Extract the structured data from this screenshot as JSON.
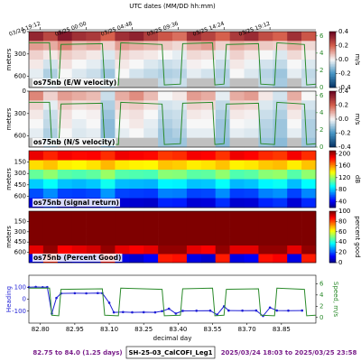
{
  "top_axis": {
    "title": "UTC dates (MM/DD hh:mm)",
    "ticks": [
      {
        "value": 82.8,
        "label": "03/24 19:12"
      },
      {
        "value": 83.0,
        "label": "03/25 00:00"
      },
      {
        "value": 83.2,
        "label": "03/25 04:48"
      },
      {
        "value": 83.4,
        "label": "03/25 09:36"
      },
      {
        "value": 83.6,
        "label": "03/25 14:24"
      },
      {
        "value": 83.8,
        "label": "03/25 19:12"
      }
    ]
  },
  "footer": {
    "left": "82.75 to 84.0 (1.25 days)",
    "center": "SH-25-03_CalCOFI_Leg1",
    "right": "2025/03/24 18:03 to 2025/03/25 23:58"
  },
  "chart_data": [
    {
      "type": "heatmap",
      "label": "os75nb (E/W velocity)",
      "ylabel": "meters",
      "colormap": "RdBu_r",
      "clabel": "m/s",
      "xlim": [
        82.75,
        84.0
      ],
      "ylim": [
        750,
        0
      ],
      "yticks": [
        0,
        300,
        600
      ],
      "y2lim": [
        0,
        6.5
      ],
      "y2ticks": [
        0,
        2,
        4,
        6
      ],
      "clim": [
        -0.4,
        0.4
      ],
      "cticks": [
        -0.4,
        -0.2,
        {
          "value": 0,
          "label": "0.0"
        },
        0.2,
        0.4
      ],
      "xbins": [
        82.75,
        82.8125,
        82.875,
        82.9375,
        83,
        83.0625,
        83.125,
        83.1875,
        83.25,
        83.3125,
        83.375,
        83.4375,
        83.5,
        83.5625,
        83.625,
        83.6875,
        83.75,
        83.8125,
        83.875,
        83.9375,
        84
      ],
      "ybins": [
        0,
        125,
        250,
        375,
        500,
        625,
        750
      ],
      "z": [
        [
          0.32,
          0.25,
          0.35,
          0.3,
          0.28,
          0.2,
          0.3,
          0.33,
          0.27,
          0.22,
          0.18,
          0.3,
          0.26,
          0.2,
          0.28,
          0.31,
          0.24,
          0.2,
          0.3,
          0.22
        ],
        [
          0.12,
          0.1,
          0.15,
          0.08,
          0.1,
          0.05,
          0.12,
          0.1,
          0.08,
          0.06,
          0.04,
          0.1,
          0.12,
          0.05,
          0.1,
          0.08,
          0.06,
          0.05,
          0.1,
          0.04
        ],
        [
          0.05,
          0.02,
          0.06,
          0.04,
          0.02,
          -0.03,
          0.05,
          0.03,
          0.02,
          0,
          -0.02,
          0.04,
          0.03,
          -0.02,
          0.05,
          0.02,
          0,
          -0.03,
          0.04,
          0.01
        ],
        [
          0.02,
          -0.04,
          0.03,
          0,
          -0.02,
          -0.06,
          0.02,
          0,
          -0.03,
          -0.05,
          -0.04,
          0.01,
          0,
          -0.05,
          0.02,
          -0.01,
          -0.04,
          -0.06,
          0,
          -0.03
        ],
        [
          -0.02,
          -0.08,
          0,
          -0.03,
          -0.05,
          -0.1,
          0,
          -0.04,
          -0.06,
          -0.08,
          -0.07,
          -0.02,
          -0.04,
          -0.08,
          0,
          -0.03,
          -0.07,
          -0.1,
          -0.02,
          -0.06
        ],
        [
          null,
          -0.05,
          null,
          null,
          null,
          -0.08,
          null,
          null,
          null,
          -0.06,
          -0.05,
          null,
          null,
          -0.07,
          null,
          null,
          -0.06,
          -0.09,
          null,
          -0.05
        ]
      ]
    },
    {
      "type": "heatmap",
      "label": "os75nb (N/S velocity)",
      "ylabel": "meters",
      "colormap": "RdBu_r",
      "clabel": "m/s",
      "xlim": [
        82.75,
        84.0
      ],
      "ylim": [
        750,
        0
      ],
      "yticks": [
        0,
        300,
        600
      ],
      "y2lim": [
        0,
        6.5
      ],
      "y2ticks": [
        0,
        2,
        4,
        6
      ],
      "clim": [
        -0.4,
        0.4
      ],
      "cticks": [
        -0.4,
        -0.2,
        {
          "value": 0,
          "label": "0.0"
        },
        0.2,
        0.4
      ],
      "xbins": [
        82.75,
        82.8125,
        82.875,
        82.9375,
        83,
        83.0625,
        83.125,
        83.1875,
        83.25,
        83.3125,
        83.375,
        83.4375,
        83.5,
        83.5625,
        83.625,
        83.6875,
        83.75,
        83.8125,
        83.875,
        83.9375,
        84
      ],
      "ybins": [
        0,
        125,
        250,
        375,
        500,
        625,
        750
      ],
      "z": [
        [
          0.15,
          0.05,
          0.12,
          0.1,
          0.08,
          -0.05,
          0.1,
          0.14,
          0.08,
          0,
          0.02,
          0.12,
          0.1,
          -0.02,
          0.1,
          0.12,
          0.02,
          -0.04,
          0.1,
          0
        ],
        [
          0.05,
          -0.02,
          0.06,
          0.03,
          0.04,
          -0.08,
          0.05,
          0.06,
          0.03,
          -0.04,
          -0.03,
          0.05,
          0.04,
          -0.06,
          0.05,
          0.04,
          -0.03,
          -0.06,
          0.05,
          -0.04
        ],
        [
          0.02,
          -0.05,
          0.03,
          0,
          0.01,
          -0.1,
          0.02,
          0.03,
          0,
          -0.06,
          -0.05,
          0.02,
          0.01,
          -0.08,
          0.02,
          0.01,
          -0.05,
          -0.08,
          0.02,
          -0.06
        ],
        [
          0,
          -0.06,
          0.02,
          -0.02,
          0,
          -0.12,
          0,
          0.02,
          -0.02,
          -0.08,
          -0.06,
          0,
          0,
          -0.1,
          0,
          -0.01,
          -0.07,
          -0.1,
          0,
          -0.08
        ],
        [
          -0.02,
          -0.08,
          0,
          -0.03,
          -0.02,
          -0.12,
          -0.02,
          0,
          -0.03,
          -0.1,
          -0.08,
          -0.02,
          -0.02,
          -0.1,
          -0.02,
          -0.03,
          -0.08,
          -0.1,
          -0.02,
          -0.08
        ],
        [
          null,
          -0.1,
          null,
          null,
          null,
          -0.14,
          null,
          null,
          null,
          -0.1,
          -0.1,
          null,
          null,
          -0.12,
          null,
          null,
          -0.1,
          -0.12,
          null,
          -0.1
        ]
      ]
    },
    {
      "type": "heatmap",
      "label": "os75nb (signal return)",
      "ylabel": "meters",
      "colormap": "jet",
      "clabel": "dB",
      "xlim": [
        82.75,
        84.0
      ],
      "ylim": [
        750,
        0
      ],
      "yticks": [
        150,
        300,
        450,
        600
      ],
      "clim": [
        20,
        210
      ],
      "cticks": [
        40,
        80,
        120,
        160,
        200
      ],
      "xbins": [
        82.75,
        82.8125,
        82.875,
        82.9375,
        83,
        83.0625,
        83.125,
        83.1875,
        83.25,
        83.3125,
        83.375,
        83.4375,
        83.5,
        83.5625,
        83.625,
        83.6875,
        83.75,
        83.8125,
        83.875,
        83.9375,
        84
      ],
      "ybins": [
        0,
        125,
        250,
        375,
        500,
        625,
        750
      ],
      "z": [
        [
          190,
          180,
          188,
          185,
          186,
          178,
          189,
          187,
          185,
          176,
          178,
          188,
          186,
          177,
          189,
          186,
          179,
          176,
          188,
          178
        ],
        [
          145,
          150,
          142,
          140,
          144,
          152,
          143,
          141,
          140,
          150,
          148,
          142,
          144,
          150,
          141,
          143,
          149,
          151,
          142,
          150
        ],
        [
          110,
          118,
          108,
          106,
          109,
          120,
          107,
          106,
          105,
          117,
          116,
          108,
          109,
          118,
          106,
          108,
          117,
          119,
          107,
          118
        ],
        [
          82,
          92,
          80,
          78,
          81,
          94,
          79,
          78,
          77,
          90,
          89,
          80,
          81,
          92,
          78,
          80,
          90,
          93,
          79,
          91
        ],
        [
          58,
          70,
          56,
          55,
          57,
          72,
          56,
          55,
          54,
          68,
          67,
          56,
          57,
          70,
          55,
          56,
          68,
          71,
          56,
          69
        ],
        [
          38,
          52,
          36,
          35,
          37,
          54,
          36,
          35,
          34,
          50,
          49,
          36,
          37,
          52,
          35,
          36,
          50,
          53,
          36,
          51
        ]
      ]
    },
    {
      "type": "heatmap",
      "label": "os75nb (Percent Good)",
      "ylabel": "meters",
      "colormap": "jet",
      "clabel": "percent good",
      "xlim": [
        82.75,
        84.0
      ],
      "ylim": [
        750,
        0
      ],
      "yticks": [
        150,
        300,
        450,
        600
      ],
      "clim": [
        0,
        100
      ],
      "cticks": [
        0,
        20,
        40,
        60,
        80,
        100
      ],
      "xbins": [
        82.75,
        82.8125,
        82.875,
        82.9375,
        83,
        83.0625,
        83.125,
        83.1875,
        83.25,
        83.3125,
        83.375,
        83.4375,
        83.5,
        83.5625,
        83.625,
        83.6875,
        83.75,
        83.8125,
        83.875,
        83.9375,
        84
      ],
      "ybins": [
        0,
        125,
        250,
        375,
        500,
        625,
        750
      ],
      "z": [
        [
          100,
          100,
          100,
          100,
          100,
          100,
          100,
          100,
          100,
          100,
          100,
          100,
          100,
          100,
          100,
          100,
          100,
          100,
          100,
          100
        ],
        [
          100,
          100,
          100,
          100,
          100,
          100,
          100,
          100,
          100,
          100,
          100,
          100,
          100,
          100,
          100,
          100,
          100,
          100,
          100,
          100
        ],
        [
          100,
          100,
          100,
          100,
          100,
          100,
          100,
          100,
          100,
          100,
          100,
          100,
          100,
          100,
          100,
          100,
          100,
          100,
          100,
          100
        ],
        [
          100,
          100,
          100,
          100,
          100,
          100,
          100,
          100,
          100,
          100,
          100,
          100,
          100,
          100,
          100,
          100,
          100,
          100,
          100,
          100
        ],
        [
          90,
          98,
          88,
          90,
          92,
          98,
          90,
          88,
          90,
          98,
          98,
          90,
          88,
          98,
          90,
          90,
          98,
          98,
          90,
          98
        ],
        [
          10,
          85,
          8,
          12,
          10,
          88,
          10,
          8,
          12,
          85,
          86,
          10,
          8,
          85,
          10,
          12,
          86,
          88,
          10,
          85
        ]
      ]
    },
    {
      "type": "line",
      "ylabel": "Heading",
      "y2label": "Speed, m/s",
      "xlabel": "decimal day",
      "xlim": [
        82.75,
        84.0
      ],
      "ylim": [
        -200,
        200
      ],
      "yticks": [
        -100,
        0,
        100
      ],
      "y2lim": [
        -1,
        7.5
      ],
      "y2ticks": [
        0,
        2,
        4,
        6
      ],
      "xticks": [
        {
          "value": 82.8,
          "label": "82.80"
        },
        {
          "value": 82.95,
          "label": "82.95"
        },
        {
          "value": 83.1,
          "label": "83.10"
        },
        {
          "value": 83.25,
          "label": "83.25"
        },
        {
          "value": 83.4,
          "label": "83.40"
        },
        {
          "value": 83.55,
          "label": "83.55"
        },
        {
          "value": 83.7,
          "label": "83.70"
        },
        {
          "value": 83.85,
          "label": "83.85"
        }
      ],
      "series": [
        {
          "color": "#1f1fd6",
          "x": [
            82.75,
            82.78,
            82.81,
            82.83,
            82.85,
            82.87,
            82.89,
            82.95,
            83.0,
            83.05,
            83.07,
            83.1,
            83.12,
            83.16,
            83.2,
            83.25,
            83.3,
            83.33,
            83.36,
            83.39,
            83.42,
            83.48,
            83.54,
            83.57,
            83.6,
            83.62,
            83.68,
            83.74,
            83.77,
            83.8,
            83.83,
            83.88,
            83.94
          ],
          "values": [
            100,
            102,
            100,
            101,
            -120,
            10,
            48,
            50,
            49,
            51,
            50,
            -30,
            -110,
            -108,
            -110,
            -109,
            -110,
            -100,
            -80,
            -120,
            -98,
            -97,
            -96,
            -130,
            -60,
            -95,
            -96,
            -95,
            -140,
            -70,
            -95,
            -96,
            -95
          ]
        },
        {
          "color": "#2a8a2a",
          "axis": "y2",
          "x": [
            82.75,
            82.84,
            82.85,
            82.88,
            82.89,
            83.07,
            83.08,
            83.14,
            83.15,
            83.33,
            83.34,
            83.41,
            83.42,
            83.55,
            83.56,
            83.6,
            83.61,
            83.75,
            83.76,
            83.82,
            83.83,
            83.95,
            83.96,
            84.0
          ],
          "values": [
            5.2,
            5.2,
            0.4,
            0.3,
            5.0,
            5.1,
            0.4,
            0.3,
            5.2,
            5.0,
            0.3,
            0.4,
            5.1,
            5.2,
            0.3,
            0.4,
            5.0,
            5.1,
            0.4,
            0.3,
            5.2,
            5.0,
            0.3,
            0.4
          ]
        }
      ]
    }
  ]
}
